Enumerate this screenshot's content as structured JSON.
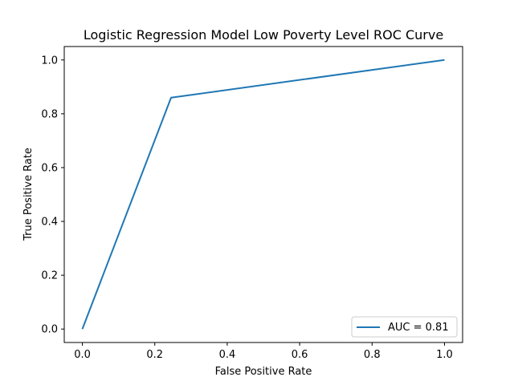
{
  "chart_data": {
    "type": "line",
    "title": "Logistic Regression Model Low Poverty Level ROC Curve",
    "xlabel": "False Positive Rate",
    "ylabel": "True Positive Rate",
    "xlim": [
      -0.05,
      1.05
    ],
    "ylim": [
      -0.05,
      1.05
    ],
    "xticks": [
      0.0,
      0.2,
      0.4,
      0.6,
      0.8,
      1.0
    ],
    "xtick_labels": [
      "0.0",
      "0.2",
      "0.4",
      "0.6",
      "0.8",
      "1.0"
    ],
    "yticks": [
      0.0,
      0.2,
      0.4,
      0.6,
      0.8,
      1.0
    ],
    "ytick_labels": [
      "0.0",
      "0.2",
      "0.4",
      "0.6",
      "0.8",
      "1.0"
    ],
    "grid": false,
    "legend_position": "lower-right",
    "series": [
      {
        "name": "AUC = 0.81",
        "color": "#1f77b4",
        "x": [
          0.0,
          0.245,
          1.0
        ],
        "y": [
          0.0,
          0.86,
          1.0
        ]
      }
    ]
  }
}
